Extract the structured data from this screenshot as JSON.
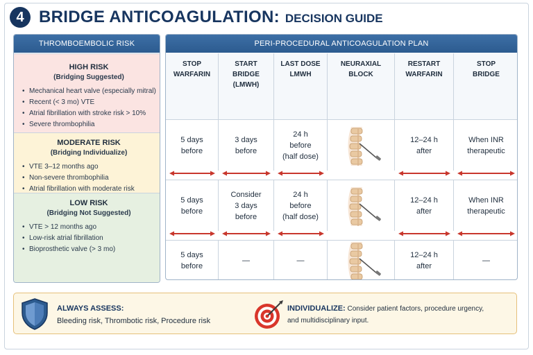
{
  "header": {
    "number": "4",
    "title": "BRIDGE ANTICOAGULATION:",
    "subtitle": "DECISION GUIDE"
  },
  "left_panel": {
    "title": "THROMBOEMBOLIC RISK",
    "risks": [
      {
        "title": "HIGH RISK",
        "subtitle": "(Bridging Suggested)",
        "items": [
          "Mechanical heart valve (especially mitral)",
          "Recent (< 3 mo) VTE",
          "Atrial fibrillation with stroke risk > 10%",
          "Severe thrombophilia"
        ]
      },
      {
        "title": "MODERATE RISK",
        "subtitle": "(Bridging Individualize)",
        "items": [
          "VTE 3–12 months ago",
          "Non-severe thrombophilia",
          "Atrial fibrillation with moderate risk"
        ]
      },
      {
        "title": "LOW RISK",
        "subtitle": "(Bridging Not Suggested)",
        "items": [
          "VTE > 12 months ago",
          "Low-risk atrial fibrillation",
          "Bioprosthetic valve (> 3 mo)"
        ]
      }
    ]
  },
  "right_panel": {
    "title": "PERI-PROCEDURAL ANTICOAGULATION PLAN",
    "columns": [
      {
        "line1": "STOP",
        "line2": "WARFARIN"
      },
      {
        "line1": "START",
        "line2": "BRIDGE (LMWH)"
      },
      {
        "line1": "LAST DOSE",
        "line2": "LMWH"
      },
      {
        "line1": "NEURAXIAL",
        "line2": "BLOCK"
      },
      {
        "line1": "RESTART",
        "line2": "WARFARIN"
      },
      {
        "line1": "STOP",
        "line2": "BRIDGE"
      }
    ],
    "rows": [
      [
        [
          "5 days",
          "before"
        ],
        [
          "3 days",
          "before"
        ],
        [
          "24 h",
          "before",
          "(half dose)"
        ],
        [],
        [
          "12–24 h",
          "after"
        ],
        [
          "When INR",
          "therapeutic"
        ]
      ],
      [
        [
          "5 days",
          "before"
        ],
        [
          "Consider",
          "3 days",
          "before"
        ],
        [
          "24 h",
          "before",
          "(half dose)"
        ],
        [],
        [
          "12–24 h",
          "after"
        ],
        [
          "When INR",
          "therapeutic"
        ]
      ],
      [
        [
          "5 days",
          "before"
        ],
        [
          "—"
        ],
        [
          "—"
        ],
        [],
        [
          "12–24 h",
          "after"
        ],
        [
          "—"
        ]
      ]
    ]
  },
  "bottom": {
    "assess_title": "ALWAYS ASSESS:",
    "assess_text": "Bleeding risk, Thrombotic risk, Procedure risk",
    "indiv_title": "INDIVIDUALIZE:",
    "indiv_text1": "Consider patient factors, procedure urgency,",
    "indiv_text2": "and multidisciplinary input."
  },
  "colors": {
    "navy": "#17355f",
    "header_blue": "#2c5b8f",
    "high_bg": "#fbe4e2",
    "moderate_bg": "#fdf3d7",
    "low_bg": "#e6f0e1",
    "arrow_red": "#c8372d",
    "note_bg": "#fdf7e6"
  },
  "icons": [
    "shield-icon",
    "target-icon",
    "spine-needle-icon"
  ]
}
